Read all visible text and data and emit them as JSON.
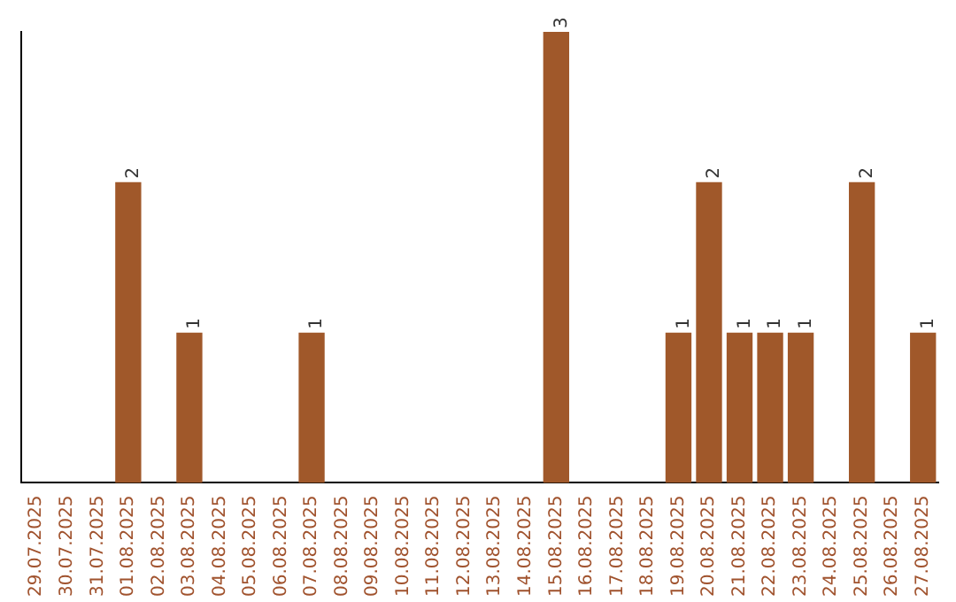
{
  "chart_data": {
    "type": "bar",
    "categories": [
      "29.07.2025",
      "30.07.2025",
      "31.07.2025",
      "01.08.2025",
      "02.08.2025",
      "03.08.2025",
      "04.08.2025",
      "05.08.2025",
      "06.08.2025",
      "07.08.2025",
      "08.08.2025",
      "09.08.2025",
      "10.08.2025",
      "11.08.2025",
      "12.08.2025",
      "13.08.2025",
      "14.08.2025",
      "15.08.2025",
      "16.08.2025",
      "17.08.2025",
      "18.08.2025",
      "19.08.2025",
      "20.08.2025",
      "21.08.2025",
      "22.08.2025",
      "23.08.2025",
      "24.08.2025",
      "25.08.2025",
      "26.08.2025",
      "27.08.2025"
    ],
    "values": [
      0,
      0,
      0,
      2,
      0,
      1,
      0,
      0,
      0,
      1,
      0,
      0,
      0,
      0,
      0,
      0,
      0,
      3,
      0,
      0,
      0,
      1,
      2,
      1,
      1,
      1,
      0,
      2,
      0,
      1
    ],
    "value_labels": [
      null,
      null,
      null,
      "2",
      null,
      "1",
      null,
      null,
      null,
      "1",
      null,
      null,
      null,
      null,
      null,
      null,
      null,
      "3",
      null,
      null,
      null,
      "1",
      "2",
      "1",
      "1",
      "1",
      null,
      "2",
      null,
      "1"
    ],
    "color": "#a0582a"
  }
}
